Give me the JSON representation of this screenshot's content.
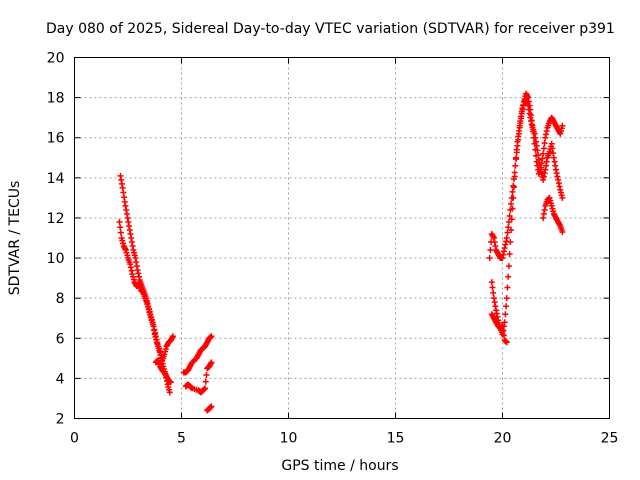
{
  "chart_data": {
    "type": "scatter",
    "title": "Day 080 of 2025, Sidereal Day-to-day VTEC variation (SDTVAR) for receiver p391",
    "xlabel": "GPS time / hours",
    "ylabel": "SDTVAR / TECUs",
    "xlim": [
      0,
      25
    ],
    "ylim": [
      2,
      20
    ],
    "xticks": [
      0,
      5,
      10,
      15,
      20,
      25
    ],
    "yticks": [
      2,
      4,
      6,
      8,
      10,
      12,
      14,
      16,
      18,
      20
    ],
    "grid": true,
    "marker": "+",
    "color": "#ff0000",
    "series": [
      {
        "name": "segment-1",
        "x": [
          2.15,
          2.25,
          2.35,
          2.45,
          2.55,
          2.65,
          2.75,
          2.85,
          2.95,
          3.05,
          3.15,
          3.25,
          3.35,
          3.45,
          3.55,
          3.65,
          3.75,
          3.85,
          3.95,
          4.05,
          4.15,
          4.25,
          4.35,
          4.45
        ],
        "y": [
          14.1,
          13.5,
          12.8,
          12.2,
          11.6,
          11.0,
          10.4,
          10.0,
          9.4,
          8.9,
          8.6,
          8.3,
          8.0,
          7.6,
          7.2,
          6.8,
          6.2,
          5.8,
          5.5,
          5.0,
          4.6,
          4.2,
          3.7,
          3.3
        ]
      },
      {
        "name": "segment-2",
        "x": [
          2.1,
          2.2,
          2.3,
          2.4,
          2.5,
          2.6,
          2.7,
          2.8,
          2.9,
          3.0,
          3.1,
          3.2,
          3.3,
          3.4,
          3.5,
          3.6,
          3.7,
          3.8,
          3.9,
          4.0,
          4.1,
          4.2,
          4.3,
          4.4,
          4.5,
          4.6
        ],
        "y": [
          11.8,
          11.0,
          10.6,
          10.4,
          10.0,
          9.7,
          9.2,
          8.8,
          8.6,
          8.7,
          8.4,
          8.3,
          8.0,
          7.7,
          7.3,
          6.9,
          6.6,
          6.1,
          5.6,
          5.3,
          4.9,
          5.2,
          5.6,
          5.8,
          5.9,
          6.1
        ]
      },
      {
        "name": "segment-3",
        "x": [
          3.8,
          3.9,
          4.0,
          4.1,
          4.2,
          4.3,
          4.4,
          4.5
        ],
        "y": [
          4.8,
          4.9,
          4.6,
          4.4,
          4.3,
          4.1,
          3.9,
          3.8
        ]
      },
      {
        "name": "segment-4",
        "x": [
          5.1,
          5.2,
          5.3,
          5.4,
          5.5,
          5.7,
          5.8,
          5.9,
          6.0,
          6.1,
          6.2,
          6.3,
          6.4
        ],
        "y": [
          4.3,
          4.3,
          4.4,
          4.6,
          4.8,
          5.0,
          5.2,
          5.4,
          5.5,
          5.6,
          5.8,
          6.0,
          6.1
        ]
      },
      {
        "name": "segment-5",
        "x": [
          5.2,
          5.3,
          5.4,
          5.5,
          5.8,
          5.9,
          6.0,
          6.1,
          6.2,
          6.3,
          6.4
        ],
        "y": [
          3.6,
          3.7,
          3.6,
          3.5,
          3.4,
          3.3,
          3.4,
          3.5,
          4.5,
          4.6,
          4.8
        ]
      },
      {
        "name": "segment-6",
        "x": [
          6.2,
          6.3,
          6.4
        ],
        "y": [
          2.4,
          2.5,
          2.6
        ]
      },
      {
        "name": "segment-7",
        "x": [
          19.4,
          19.5,
          19.6,
          19.7,
          19.8,
          19.9,
          20.0,
          20.1,
          20.2,
          20.3,
          20.4,
          20.5,
          20.6,
          20.7,
          20.8,
          20.9,
          21.0,
          21.1,
          21.2,
          21.3,
          21.4,
          21.5,
          21.6,
          21.7,
          21.8,
          21.9,
          22.0,
          22.1,
          22.2,
          22.3,
          22.4,
          22.5,
          22.6,
          22.7,
          22.8
        ],
        "y": [
          10.0,
          11.2,
          11.0,
          10.4,
          10.2,
          10.0,
          10.0,
          10.5,
          11.0,
          11.8,
          12.7,
          13.6,
          14.6,
          15.6,
          16.5,
          17.2,
          17.8,
          18.2,
          18.0,
          17.4,
          16.6,
          15.7,
          14.8,
          14.2,
          14.5,
          15.2,
          16.0,
          16.5,
          16.8,
          17.0,
          16.8,
          16.6,
          16.4,
          16.2,
          16.6
        ]
      },
      {
        "name": "segment-8",
        "x": [
          19.5,
          19.6,
          19.7,
          19.8,
          19.9,
          20.0,
          20.1,
          20.2,
          20.3,
          20.4,
          20.5,
          20.6,
          20.7,
          20.8,
          20.9,
          21.0,
          21.1,
          21.2,
          21.3,
          21.4,
          21.5,
          21.6,
          21.7,
          21.8,
          21.9,
          22.0,
          22.1,
          22.2,
          22.3,
          22.4,
          22.5,
          22.6,
          22.7,
          22.8
        ],
        "y": [
          8.8,
          8.0,
          7.4,
          6.9,
          6.5,
          6.2,
          6.8,
          8.0,
          9.6,
          11.4,
          13.0,
          14.6,
          15.8,
          16.6,
          17.3,
          17.8,
          17.9,
          17.6,
          17.0,
          16.5,
          16.2,
          15.6,
          14.9,
          14.3,
          13.9,
          14.4,
          15.0,
          15.3,
          15.7,
          15.0,
          14.4,
          13.9,
          13.4,
          13.0
        ]
      },
      {
        "name": "segment-9",
        "x": [
          19.5,
          19.6,
          19.7,
          19.8,
          19.9,
          20.0,
          20.1,
          20.2
        ],
        "y": [
          7.2,
          7.0,
          6.8,
          6.6,
          6.5,
          6.6,
          5.9,
          5.8
        ]
      },
      {
        "name": "segment-10",
        "x": [
          21.9,
          22.0,
          22.1,
          22.2,
          22.3,
          22.4,
          22.5,
          22.6,
          22.7,
          22.8
        ],
        "y": [
          12.0,
          12.6,
          12.9,
          13.0,
          12.6,
          12.2,
          12.0,
          11.8,
          11.6,
          11.3
        ]
      }
    ]
  }
}
